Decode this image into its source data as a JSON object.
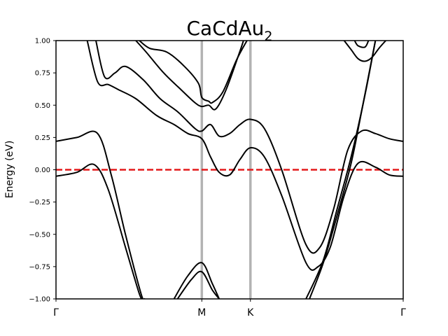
{
  "chart_data": {
    "type": "line",
    "title": "CaCdAu",
    "title_subscript": "2",
    "ylabel": "Energy (eV)",
    "xlabel": "",
    "ylim": [
      -1.0,
      1.0
    ],
    "xlim": [
      0,
      1
    ],
    "yticks": [
      -1.0,
      -0.75,
      -0.5,
      -0.25,
      0.0,
      0.25,
      0.5,
      0.75,
      1.0
    ],
    "ytick_labels": [
      "−1.00",
      "−0.75",
      "−0.50",
      "−0.25",
      "0.00",
      "0.25",
      "0.50",
      "0.75",
      "1.00"
    ],
    "high_symmetry_points": [
      {
        "label": "Γ",
        "x": 0.0
      },
      {
        "label": "M",
        "x": 0.42
      },
      {
        "label": "K",
        "x": 0.56
      },
      {
        "label": "Γ",
        "x": 1.0
      }
    ],
    "fermi_level": 0.0,
    "grid": false,
    "colors": {
      "bands": "#000000",
      "fermi": "#e41a1c",
      "symmetry_lines": "#b3b3b3"
    },
    "series": [
      {
        "x": [
          0.0,
          0.06,
          0.11,
          0.15,
          0.2,
          0.24,
          0.25
        ],
        "y": [
          -0.05,
          -0.02,
          0.04,
          -0.15,
          -0.6,
          -0.96,
          -1.0
        ]
      },
      {
        "x": [
          0.0,
          0.06,
          0.12,
          0.16,
          0.2,
          0.245,
          0.255
        ],
        "y": [
          0.22,
          0.25,
          0.28,
          -0.05,
          -0.5,
          -0.96,
          -1.0
        ]
      },
      {
        "x": [
          0.09,
          0.12,
          0.15,
          0.18,
          0.23,
          0.29,
          0.34,
          0.38,
          0.42,
          0.445,
          0.47,
          0.5,
          0.53,
          0.56,
          0.6,
          0.65,
          0.72,
          0.755,
          0.79,
          0.83,
          0.87,
          0.92,
          0.96,
          1.0
        ],
        "y": [
          1.0,
          0.68,
          0.66,
          0.62,
          0.55,
          0.42,
          0.35,
          0.28,
          0.24,
          0.1,
          -0.02,
          -0.04,
          0.08,
          0.17,
          0.1,
          -0.2,
          -0.72,
          -0.75,
          -0.6,
          -0.2,
          0.05,
          0.02,
          -0.04,
          -0.05
        ]
      },
      {
        "x": [
          0.115,
          0.14,
          0.17,
          0.2,
          0.25,
          0.3,
          0.35,
          0.4,
          0.42,
          0.445,
          0.47,
          0.5,
          0.53,
          0.56,
          0.6,
          0.65,
          0.72,
          0.76,
          0.8,
          0.84,
          0.88,
          0.92,
          0.96,
          1.0
        ],
        "y": [
          1.0,
          0.72,
          0.75,
          0.8,
          0.7,
          0.55,
          0.45,
          0.32,
          0.3,
          0.35,
          0.26,
          0.28,
          0.35,
          0.39,
          0.32,
          0.0,
          -0.58,
          -0.6,
          -0.3,
          0.15,
          0.3,
          0.28,
          0.24,
          0.22
        ]
      },
      {
        "x": [
          0.23,
          0.26,
          0.31,
          0.36,
          0.4,
          0.42,
          0.44,
          0.46,
          0.49,
          0.53,
          0.54
        ],
        "y": [
          1.0,
          0.91,
          0.75,
          0.62,
          0.52,
          0.49,
          0.5,
          0.47,
          0.62,
          0.92,
          1.0
        ]
      },
      {
        "x": [
          0.24,
          0.27,
          0.32,
          0.37,
          0.41,
          0.42,
          0.44,
          0.45,
          0.48,
          0.52,
          0.55
        ],
        "y": [
          1.0,
          0.94,
          0.91,
          0.8,
          0.67,
          0.56,
          0.53,
          0.52,
          0.6,
          0.85,
          1.0
        ]
      },
      {
        "x": [
          0.34,
          0.38,
          0.42,
          0.45,
          0.47
        ],
        "y": [
          -1.0,
          -0.82,
          -0.72,
          -0.88,
          -1.0
        ]
      },
      {
        "x": [
          0.35,
          0.39,
          0.42,
          0.45,
          0.47
        ],
        "y": [
          -1.0,
          -0.85,
          -0.79,
          -0.93,
          -1.0
        ]
      },
      {
        "x": [
          0.72,
          0.77,
          0.81,
          0.85,
          0.89,
          0.92
        ],
        "y": [
          -1.0,
          -0.7,
          -0.3,
          0.1,
          0.58,
          1.0
        ]
      },
      {
        "x": [
          0.73,
          0.77,
          0.81,
          0.85,
          0.88,
          0.92
        ],
        "y": [
          -1.0,
          -0.72,
          -0.35,
          0.05,
          0.45,
          1.0
        ]
      },
      {
        "x": [
          0.83,
          0.85,
          0.87,
          0.89,
          0.91,
          0.93,
          0.95
        ],
        "y": [
          1.0,
          0.93,
          0.86,
          0.84,
          0.87,
          0.94,
          1.0
        ]
      },
      {
        "x": [
          0.86,
          0.87,
          0.89,
          0.9
        ],
        "y": [
          1.0,
          0.96,
          0.95,
          1.0
        ]
      }
    ]
  }
}
